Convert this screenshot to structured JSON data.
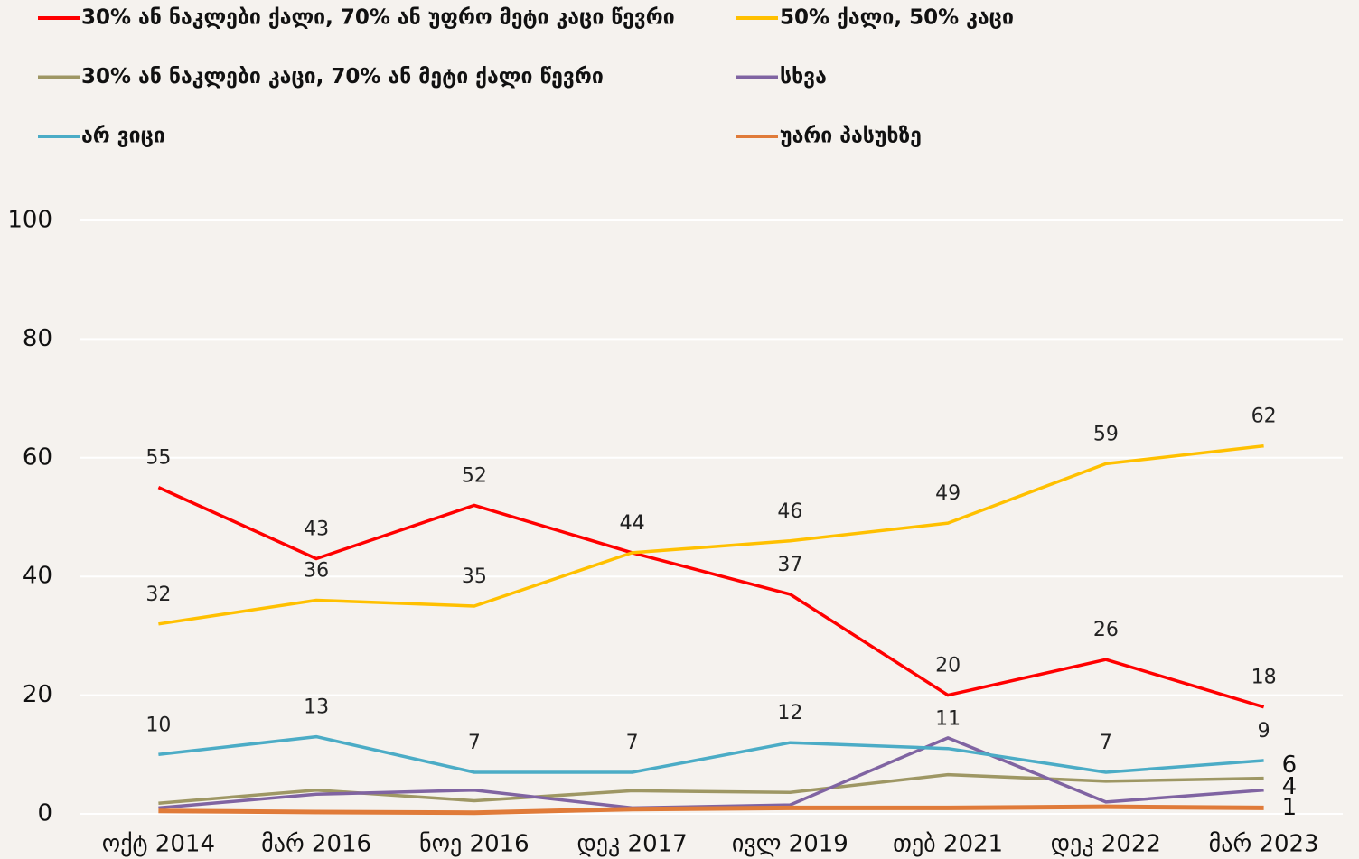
{
  "chart_data": {
    "type": "line",
    "categories": [
      "ოქტ 2014",
      "მარ 2016",
      "ნოე 2016",
      "დეკ 2017",
      "ივლ 2019",
      "თებ 2021",
      "დეკ 2022",
      "მარ 2023"
    ],
    "ylim": [
      0,
      100
    ],
    "yticks": [
      0,
      20,
      40,
      60,
      80,
      100
    ],
    "grid": true,
    "series": [
      {
        "name": "30% ან ნაკლები ქალი, 70% ან უფრო მეტი კაცი წევრი",
        "color": "#ff0000",
        "values": [
          55,
          43,
          52,
          44,
          37,
          20,
          26,
          18
        ],
        "show_labels": "all"
      },
      {
        "name": "50% ქალი, 50% კაცი",
        "color": "#ffc000",
        "values": [
          32,
          36,
          35,
          44,
          46,
          49,
          59,
          62
        ],
        "show_labels": "all"
      },
      {
        "name": "30% ან ნაკლები კაცი, 70% ან მეტი ქალი წევრი",
        "color": "#9e9764",
        "values": [
          1.8,
          4,
          2.2,
          3.9,
          3.6,
          6.6,
          5.5,
          6
        ],
        "show_labels": "last"
      },
      {
        "name": "სხვა",
        "color": "#8064a2",
        "values": [
          1,
          3.3,
          4,
          1,
          1.5,
          12.8,
          2,
          4
        ],
        "show_labels": "last"
      },
      {
        "name": "არ ვიცი",
        "color": "#4bacc6",
        "values": [
          10,
          13,
          7,
          7,
          12,
          11,
          7,
          9
        ],
        "show_labels": "all"
      },
      {
        "name": "უარი პასუხზე",
        "color": "#e07b39",
        "values": [
          0.5,
          0.3,
          0.2,
          0.8,
          1,
          1,
          1.2,
          1
        ],
        "show_labels": "last"
      }
    ]
  }
}
